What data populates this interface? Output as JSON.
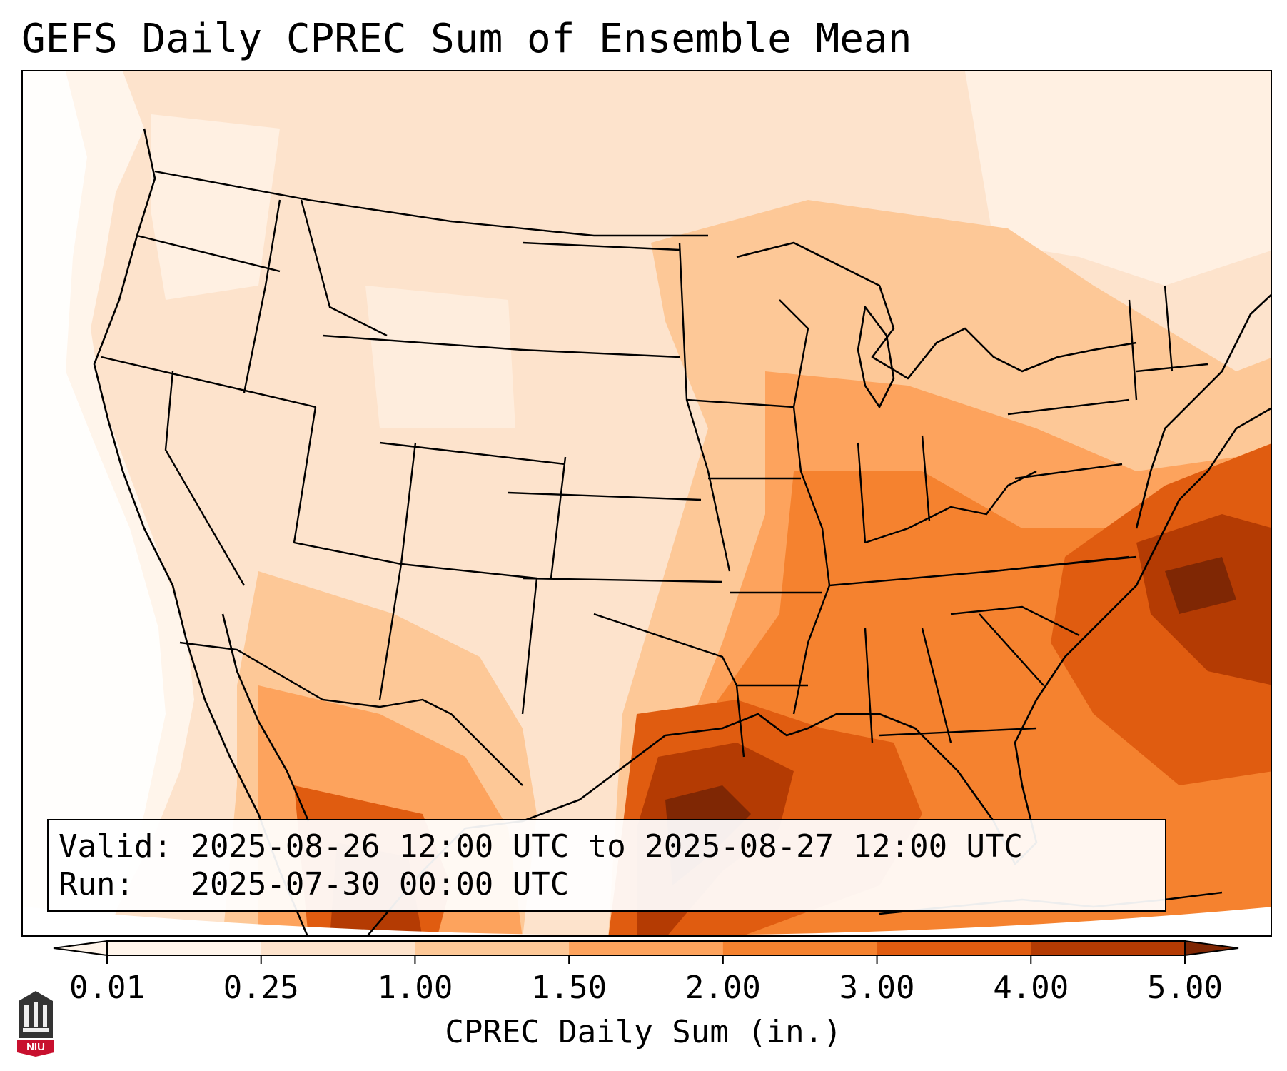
{
  "title": "GEFS Daily CPREC Sum of Ensemble Mean",
  "info": {
    "valid_label": "Valid:",
    "valid_value": "2025-08-26 12:00 UTC to 2025-08-27 12:00 UTC",
    "run_label": "Run:",
    "run_value": "2025-07-30 00:00 UTC"
  },
  "colorbar": {
    "label": "CPREC Daily Sum (in.)",
    "ticks": [
      "0.01",
      "0.25",
      "1.00",
      "1.50",
      "2.00",
      "3.00",
      "4.00",
      "5.00"
    ],
    "colors": [
      "#fff5eb",
      "#fde3cc",
      "#fdc897",
      "#fda35d",
      "#f5822f",
      "#e05c10",
      "#b43b03",
      "#7f2704"
    ],
    "extend": "both"
  },
  "logo": {
    "text": "NIU",
    "icon": "castle-icon"
  }
}
